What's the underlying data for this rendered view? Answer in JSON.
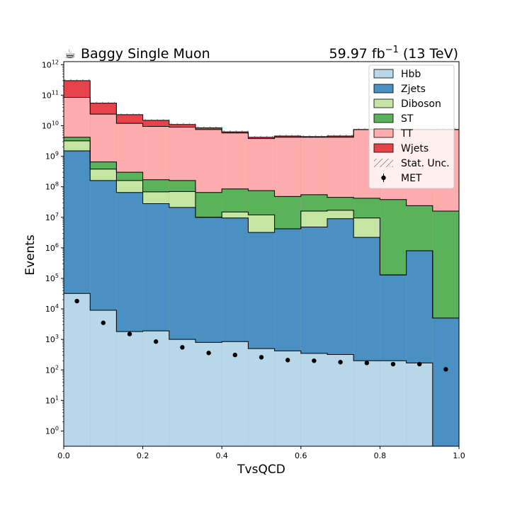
{
  "chart_data": {
    "type": "bar",
    "subtype": "stacked-step-histogram",
    "title_left": "Baggy Single Muon",
    "lumi": "59.97 fb",
    "lumi_exp": "−1",
    "energy": " (13 TeV)",
    "xlabel": "TvsQCD",
    "ylabel": "Events",
    "xlim": [
      0,
      1
    ],
    "ylim_log10": [
      -0.5,
      12.1
    ],
    "yscale": "log",
    "x_ticks": [
      "0.0",
      "0.2",
      "0.4",
      "0.6",
      "0.8",
      "1.0"
    ],
    "x_tick_values": [
      0,
      0.2,
      0.4,
      0.6,
      0.8,
      1.0
    ],
    "y_tick_exponents": [
      0,
      1,
      2,
      3,
      4,
      5,
      6,
      7,
      8,
      9,
      10,
      11,
      12
    ],
    "y_tick_base": "10",
    "bin_edges": [
      0,
      0.0667,
      0.1333,
      0.2,
      0.2667,
      0.3333,
      0.4,
      0.4667,
      0.5333,
      0.6,
      0.6667,
      0.7333,
      0.8,
      0.8667,
      0.9333,
      1.0
    ],
    "series": [
      {
        "name": "Hbb",
        "color": "#b8d7e9",
        "cumulative": [
          32000.0,
          9000.0,
          1800.0,
          1900.0,
          1000.0,
          800.0,
          850.0,
          500.0,
          420.0,
          350.0,
          320.0,
          200.0,
          200.0,
          170.0,
          1e-05
        ]
      },
      {
        "name": "Zjets",
        "color": "#4a90c2",
        "cumulative": [
          1500000000.0,
          160000000.0,
          65000000.0,
          28000000.0,
          21000000.0,
          10000000.0,
          9500000.0,
          3200000.0,
          4200000.0,
          4800000.0,
          9000000.0,
          2200000.0,
          130000.0,
          800000.0,
          5000.0
        ]
      },
      {
        "name": "Diboson",
        "color": "#c5e6a2",
        "cumulative": [
          3200000000.0,
          380000000.0,
          160000000.0,
          68000000.0,
          70000000.0,
          10000000.0,
          15000000.0,
          12000000.0,
          4200000.0,
          16000000.0,
          17000000.0,
          9500000.0,
          130000.0,
          800000.0,
          5000.0
        ]
      },
      {
        "name": "ST",
        "color": "#5ab25a",
        "cumulative": [
          4200000000.0,
          650000000.0,
          300000000.0,
          170000000.0,
          160000000.0,
          65000000.0,
          85000000.0,
          75000000.0,
          48000000.0,
          55000000.0,
          45000000.0,
          42000000.0,
          38000000.0,
          24000000.0,
          16000000.0
        ]
      },
      {
        "name": "TT",
        "color": "#fdadad",
        "cumulative": [
          85000000000.0,
          24000000000.0,
          12000000000.0,
          9500000000.0,
          9000000000.0,
          7500000000.0,
          5800000000.0,
          3800000000.0,
          4200000000.0,
          4200000000.0,
          4200000000.0,
          7500000000.0,
          7500000000.0,
          7500000000.0,
          7500000000.0
        ]
      },
      {
        "name": "Wjets",
        "color": "#e8434a",
        "cumulative": [
          300000000000.0,
          55000000000.0,
          23000000000.0,
          15000000000.0,
          11000000000.0,
          8500000000.0,
          6300000000.0,
          4200000000.0,
          4600000000.0,
          4400000000.0,
          4600000000.0,
          7500000000.0,
          7500000000.0,
          7500000000.0,
          7500000000.0
        ]
      }
    ],
    "stat_unc": {
      "name": "Stat. Unc."
    },
    "data_points": {
      "name": "MET",
      "x": [
        0.0333,
        0.1,
        0.1667,
        0.2333,
        0.3,
        0.3667,
        0.4333,
        0.5,
        0.5667,
        0.6333,
        0.7,
        0.7667,
        0.8333,
        0.9,
        0.9667
      ],
      "y": [
        18000.0,
        3500.0,
        1500.0,
        850.0,
        550.0,
        360.0,
        310.0,
        260.0,
        210.0,
        200.0,
        180.0,
        170.0,
        155.0,
        155.0,
        105.0
      ]
    },
    "legend": {
      "placement": "top-right",
      "entries": [
        "Hbb",
        "Zjets",
        "Diboson",
        "ST",
        "TT",
        "Wjets",
        "Stat. Unc.",
        "MET"
      ]
    },
    "grid": false
  }
}
